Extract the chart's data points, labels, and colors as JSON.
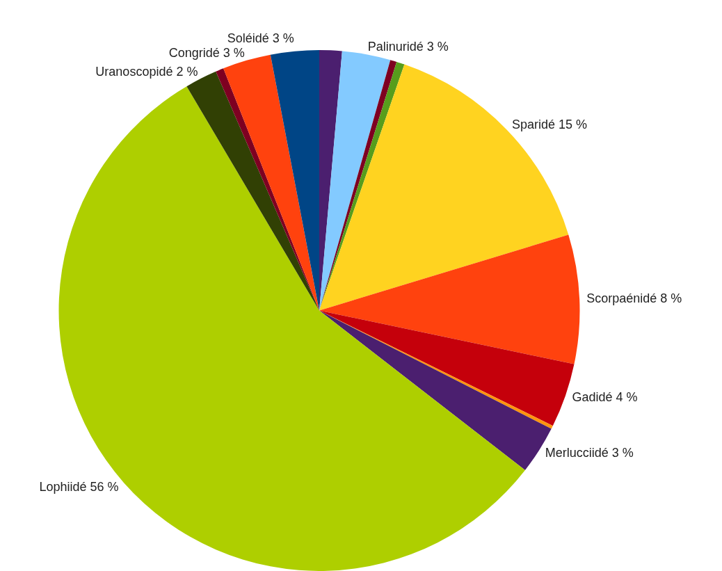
{
  "chart_data": {
    "type": "pie",
    "categories": [
      null,
      "Palinuridé",
      null,
      null,
      "Sparidé",
      "Scorpaénidé",
      "Gadidé",
      null,
      "Merlucciidé",
      "Lophiidé",
      "Uranoscopidé",
      null,
      "Congridé",
      "Soléidé"
    ],
    "values": [
      1.4,
      3,
      0.4,
      0.5,
      15,
      8,
      4,
      0.2,
      3,
      56,
      2,
      0.5,
      3,
      3
    ],
    "value_labels": [
      null,
      "3 %",
      null,
      null,
      "15 %",
      "8 %",
      "4 %",
      null,
      "3 %",
      "56 %",
      "2 %",
      null,
      "3 %",
      "3 %"
    ],
    "colors": [
      "#4b1f6f",
      "#83caff",
      "#7e0021",
      "#579d1c",
      "#ffd320",
      "#ff420e",
      "#c5000b",
      "#ff950e",
      "#4b1f6f",
      "#aecf00",
      "#314004",
      "#7e0021",
      "#ff420e",
      "#004586"
    ],
    "legend": false
  }
}
